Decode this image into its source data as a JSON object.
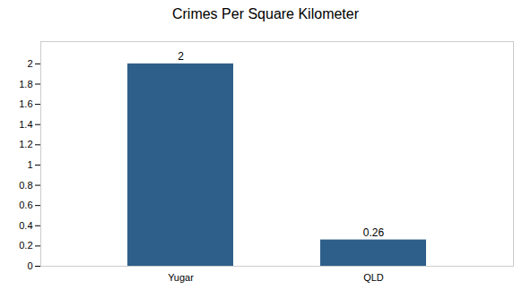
{
  "chart_data": {
    "type": "bar",
    "title": "Crimes Per Square Kilometer",
    "categories": [
      "Yugar",
      "QLD"
    ],
    "values": [
      2,
      0.26
    ],
    "color": "#2e5f8a",
    "ylim": [
      0,
      2.22
    ],
    "yticks": [
      0,
      0.2,
      0.4,
      0.6,
      0.8,
      1,
      1.2,
      1.4,
      1.6,
      1.8,
      2
    ],
    "grid": false,
    "data_labels": true
  }
}
